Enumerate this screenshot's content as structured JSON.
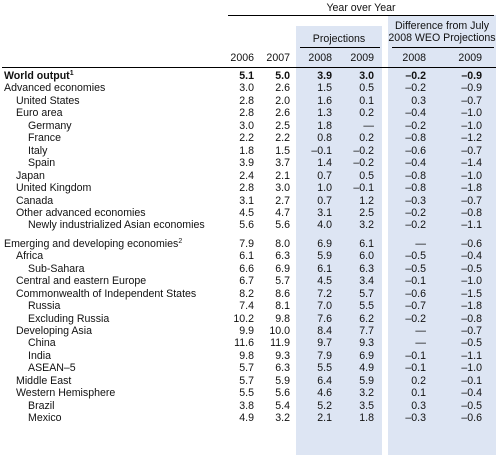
{
  "header": {
    "year_over_year": "Year over Year",
    "projections": "Projections",
    "difference_line1": "Difference from July",
    "difference_line2": "2008 WEO Projections",
    "col_2006": "2006",
    "col_2007": "2007",
    "col_2008": "2008",
    "col_2009": "2009",
    "diff_2008": "2008",
    "diff_2009": "2009"
  },
  "rows": [
    {
      "label": "World output",
      "sup": "1",
      "v2006": "5.1",
      "v2007": "5.0",
      "v2008": "3.9",
      "v2009": "3.0",
      "d2008": "–0.2",
      "d2009": "–0.9",
      "bold": true,
      "indent": 0
    },
    {
      "label": "Advanced economies",
      "sup": "",
      "v2006": "3.0",
      "v2007": "2.6",
      "v2008": "1.5",
      "v2009": "0.5",
      "d2008": "–0.2",
      "d2009": "–0.9",
      "bold": false,
      "indent": 0
    },
    {
      "label": "United States",
      "sup": "",
      "v2006": "2.8",
      "v2007": "2.0",
      "v2008": "1.6",
      "v2009": "0.1",
      "d2008": "0.3",
      "d2009": "–0.7",
      "bold": false,
      "indent": 1
    },
    {
      "label": "Euro area",
      "sup": "",
      "v2006": "2.8",
      "v2007": "2.6",
      "v2008": "1.3",
      "v2009": "0.2",
      "d2008": "–0.4",
      "d2009": "–1.0",
      "bold": false,
      "indent": 1
    },
    {
      "label": "Germany",
      "sup": "",
      "v2006": "3.0",
      "v2007": "2.5",
      "v2008": "1.8",
      "v2009": "—",
      "d2008": "–0.2",
      "d2009": "–1.0",
      "bold": false,
      "indent": 2
    },
    {
      "label": "France",
      "sup": "",
      "v2006": "2.2",
      "v2007": "2.2",
      "v2008": "0.8",
      "v2009": "0.2",
      "d2008": "–0.8",
      "d2009": "–1.2",
      "bold": false,
      "indent": 2
    },
    {
      "label": "Italy",
      "sup": "",
      "v2006": "1.8",
      "v2007": "1.5",
      "v2008": "–0.1",
      "v2009": "–0.2",
      "d2008": "–0.6",
      "d2009": "–0.7",
      "bold": false,
      "indent": 2
    },
    {
      "label": "Spain",
      "sup": "",
      "v2006": "3.9",
      "v2007": "3.7",
      "v2008": "1.4",
      "v2009": "–0.2",
      "d2008": "–0.4",
      "d2009": "–1.4",
      "bold": false,
      "indent": 2
    },
    {
      "label": "Japan",
      "sup": "",
      "v2006": "2.4",
      "v2007": "2.1",
      "v2008": "0.7",
      "v2009": "0.5",
      "d2008": "–0.8",
      "d2009": "–1.0",
      "bold": false,
      "indent": 1
    },
    {
      "label": "United Kingdom",
      "sup": "",
      "v2006": "2.8",
      "v2007": "3.0",
      "v2008": "1.0",
      "v2009": "–0.1",
      "d2008": "–0.8",
      "d2009": "–1.8",
      "bold": false,
      "indent": 1
    },
    {
      "label": "Canada",
      "sup": "",
      "v2006": "3.1",
      "v2007": "2.7",
      "v2008": "0.7",
      "v2009": "1.2",
      "d2008": "–0.3",
      "d2009": "–0.7",
      "bold": false,
      "indent": 1
    },
    {
      "label": "Other advanced economies",
      "sup": "",
      "v2006": "4.5",
      "v2007": "4.7",
      "v2008": "3.1",
      "v2009": "2.5",
      "d2008": "–0.2",
      "d2009": "–0.8",
      "bold": false,
      "indent": 1
    },
    {
      "label": "Newly industrialized Asian economies",
      "sup": "",
      "v2006": "5.6",
      "v2007": "5.6",
      "v2008": "4.0",
      "v2009": "3.2",
      "d2008": "–0.2",
      "d2009": "–1.1",
      "bold": false,
      "indent": 2
    },
    {
      "label": "Emerging and developing economies",
      "sup": "2",
      "v2006": "7.9",
      "v2007": "8.0",
      "v2008": "6.9",
      "v2009": "6.1",
      "d2008": "—",
      "d2009": "–0.6",
      "bold": false,
      "indent": 0,
      "gap": true
    },
    {
      "label": "Africa",
      "sup": "",
      "v2006": "6.1",
      "v2007": "6.3",
      "v2008": "5.9",
      "v2009": "6.0",
      "d2008": "–0.5",
      "d2009": "–0.4",
      "bold": false,
      "indent": 1
    },
    {
      "label": "Sub-Sahara",
      "sup": "",
      "v2006": "6.6",
      "v2007": "6.9",
      "v2008": "6.1",
      "v2009": "6.3",
      "d2008": "–0.5",
      "d2009": "–0.5",
      "bold": false,
      "indent": 2
    },
    {
      "label": "Central and eastern Europe",
      "sup": "",
      "v2006": "6.7",
      "v2007": "5.7",
      "v2008": "4.5",
      "v2009": "3.4",
      "d2008": "–0.1",
      "d2009": "–1.0",
      "bold": false,
      "indent": 1
    },
    {
      "label": "Commonwealth of Independent States",
      "sup": "",
      "v2006": "8.2",
      "v2007": "8.6",
      "v2008": "7.2",
      "v2009": "5.7",
      "d2008": "–0.6",
      "d2009": "–1.5",
      "bold": false,
      "indent": 1
    },
    {
      "label": "Russia",
      "sup": "",
      "v2006": "7.4",
      "v2007": "8.1",
      "v2008": "7.0",
      "v2009": "5.5",
      "d2008": "–0.7",
      "d2009": "–1.8",
      "bold": false,
      "indent": 2
    },
    {
      "label": "Excluding Russia",
      "sup": "",
      "v2006": "10.2",
      "v2007": "9.8",
      "v2008": "7.6",
      "v2009": "6.2",
      "d2008": "–0.2",
      "d2009": "–0.8",
      "bold": false,
      "indent": 2
    },
    {
      "label": "Developing Asia",
      "sup": "",
      "v2006": "9.9",
      "v2007": "10.0",
      "v2008": "8.4",
      "v2009": "7.7",
      "d2008": "—",
      "d2009": "–0.7",
      "bold": false,
      "indent": 1
    },
    {
      "label": "China",
      "sup": "",
      "v2006": "11.6",
      "v2007": "11.9",
      "v2008": "9.7",
      "v2009": "9.3",
      "d2008": "—",
      "d2009": "–0.5",
      "bold": false,
      "indent": 2
    },
    {
      "label": "India",
      "sup": "",
      "v2006": "9.8",
      "v2007": "9.3",
      "v2008": "7.9",
      "v2009": "6.9",
      "d2008": "–0.1",
      "d2009": "–1.1",
      "bold": false,
      "indent": 2
    },
    {
      "label": "ASEAN–5",
      "sup": "",
      "v2006": "5.7",
      "v2007": "6.3",
      "v2008": "5.5",
      "v2009": "4.9",
      "d2008": "–0.1",
      "d2009": "–1.0",
      "bold": false,
      "indent": 2
    },
    {
      "label": "Middle East",
      "sup": "",
      "v2006": "5.7",
      "v2007": "5.9",
      "v2008": "6.4",
      "v2009": "5.9",
      "d2008": "0.2",
      "d2009": "–0.1",
      "bold": false,
      "indent": 1
    },
    {
      "label": "Western Hemisphere",
      "sup": "",
      "v2006": "5.5",
      "v2007": "5.6",
      "v2008": "4.6",
      "v2009": "3.2",
      "d2008": "0.1",
      "d2009": "–0.4",
      "bold": false,
      "indent": 1
    },
    {
      "label": "Brazil",
      "sup": "",
      "v2006": "3.8",
      "v2007": "5.4",
      "v2008": "5.2",
      "v2009": "3.5",
      "d2008": "0.3",
      "d2009": "–0.5",
      "bold": false,
      "indent": 2
    },
    {
      "label": "Mexico",
      "sup": "",
      "v2006": "4.9",
      "v2007": "3.2",
      "v2008": "2.1",
      "v2009": "1.8",
      "d2008": "–0.3",
      "d2009": "–0.6",
      "bold": false,
      "indent": 2
    }
  ],
  "colors": {
    "projection_band": "#dde5f3",
    "rule": "#000000"
  }
}
